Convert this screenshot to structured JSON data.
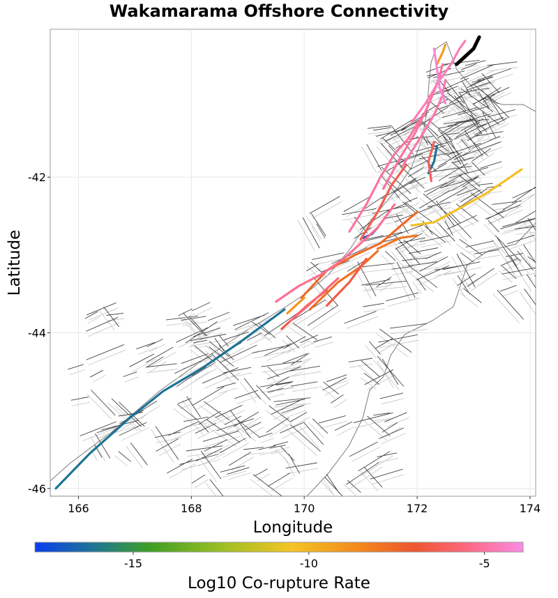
{
  "map": {
    "title": "Wakamarama Offshore Connectivity",
    "xlabel": "Longitude",
    "ylabel": "Latitude",
    "xlim": [
      165.5,
      174.1
    ],
    "ylim": [
      -46.1,
      -40.1
    ],
    "x_ticks": [
      {
        "value": 166,
        "label": "166"
      },
      {
        "value": 168,
        "label": "168"
      },
      {
        "value": 170,
        "label": "170"
      },
      {
        "value": 172,
        "label": "172"
      },
      {
        "value": 174,
        "label": "174"
      }
    ],
    "y_ticks": [
      {
        "value": -42,
        "label": "-42"
      },
      {
        "value": -44,
        "label": "-44"
      },
      {
        "value": -46,
        "label": "-46"
      }
    ],
    "grid": true,
    "source_fault_color": "#000000",
    "background_fault_color": "#444444",
    "coastline_color": "#666666"
  },
  "colorbar": {
    "title": "Log10 Co-rupture Rate",
    "range": [
      -17.8,
      -3.9
    ],
    "ticks": [
      {
        "value": -15,
        "label": "-15"
      },
      {
        "value": -10,
        "label": "-10"
      },
      {
        "value": -5,
        "label": "-5"
      }
    ],
    "stops": [
      {
        "value": -17.8,
        "color": "#0a3cf0"
      },
      {
        "value": -16.0,
        "color": "#1f7a8c"
      },
      {
        "value": -14.5,
        "color": "#3f9f22"
      },
      {
        "value": -12.5,
        "color": "#9cbf24"
      },
      {
        "value": -10.5,
        "color": "#f5c424"
      },
      {
        "value": -8.5,
        "color": "#f3861c"
      },
      {
        "value": -7.0,
        "color": "#ee5530"
      },
      {
        "value": -5.5,
        "color": "#fd6880"
      },
      {
        "value": -3.9,
        "color": "#fb8be6"
      }
    ]
  },
  "source_fault": {
    "path": [
      [
        172.7,
        -40.55
      ],
      [
        172.85,
        -40.45
      ],
      [
        173.0,
        -40.35
      ],
      [
        173.1,
        -40.2
      ]
    ]
  },
  "colored_faults": [
    {
      "rate": -16.2,
      "path": [
        [
          165.6,
          -46.0
        ],
        [
          166.2,
          -45.55
        ],
        [
          166.9,
          -45.1
        ],
        [
          167.5,
          -44.75
        ],
        [
          168.2,
          -44.45
        ],
        [
          168.9,
          -44.1
        ],
        [
          169.65,
          -43.7
        ]
      ]
    },
    {
      "rate": -16.2,
      "path": [
        [
          172.35,
          -41.6
        ],
        [
          172.3,
          -41.8
        ],
        [
          172.2,
          -41.95
        ]
      ]
    },
    {
      "rate": -17.0,
      "path": [
        [
          171.05,
          -42.78
        ],
        [
          171.2,
          -42.73
        ],
        [
          171.3,
          -42.65
        ]
      ]
    },
    {
      "rate": -10.3,
      "path": [
        [
          171.9,
          -42.62
        ],
        [
          172.3,
          -42.58
        ],
        [
          172.7,
          -42.42
        ],
        [
          173.2,
          -42.22
        ],
        [
          173.55,
          -42.05
        ],
        [
          173.85,
          -41.9
        ]
      ]
    },
    {
      "rate": -9.0,
      "path": [
        [
          169.7,
          -43.75
        ],
        [
          170.0,
          -43.55
        ]
      ]
    },
    {
      "rate": -9.2,
      "path": [
        [
          172.35,
          -40.55
        ],
        [
          172.45,
          -40.4
        ],
        [
          172.5,
          -40.3
        ]
      ]
    },
    {
      "rate": -7.6,
      "path": [
        [
          169.95,
          -43.55
        ],
        [
          170.4,
          -43.2
        ],
        [
          170.9,
          -43.0
        ],
        [
          171.35,
          -42.85
        ],
        [
          171.75,
          -42.6
        ],
        [
          172.0,
          -42.45
        ]
      ]
    },
    {
      "rate": -7.8,
      "path": [
        [
          170.1,
          -43.7
        ],
        [
          170.6,
          -43.35
        ],
        [
          171.0,
          -43.15
        ],
        [
          171.3,
          -42.95
        ]
      ]
    },
    {
      "rate": -8.0,
      "path": [
        [
          171.3,
          -42.92
        ],
        [
          171.7,
          -42.78
        ],
        [
          172.0,
          -42.75
        ]
      ]
    },
    {
      "rate": -6.6,
      "path": [
        [
          169.6,
          -43.95
        ],
        [
          170.05,
          -43.65
        ],
        [
          170.4,
          -43.45
        ]
      ]
    },
    {
      "rate": -6.6,
      "path": [
        [
          170.4,
          -43.65
        ],
        [
          170.8,
          -43.35
        ],
        [
          171.1,
          -43.05
        ]
      ]
    },
    {
      "rate": -6.4,
      "path": [
        [
          171.0,
          -42.8
        ],
        [
          171.3,
          -42.45
        ],
        [
          171.55,
          -42.1
        ],
        [
          171.8,
          -41.85
        ]
      ]
    },
    {
      "rate": -6.2,
      "path": [
        [
          172.25,
          -42.05
        ],
        [
          172.2,
          -41.8
        ],
        [
          172.3,
          -41.55
        ]
      ]
    },
    {
      "rate": -5.6,
      "path": [
        [
          169.75,
          -43.85
        ],
        [
          170.15,
          -43.6
        ],
        [
          170.6,
          -43.3
        ]
      ]
    },
    {
      "rate": -5.2,
      "path": [
        [
          169.5,
          -43.6
        ],
        [
          169.9,
          -43.4
        ],
        [
          170.3,
          -43.25
        ],
        [
          170.7,
          -43.05
        ],
        [
          171.0,
          -42.85
        ],
        [
          171.3,
          -42.65
        ],
        [
          171.6,
          -42.35
        ]
      ]
    },
    {
      "rate": -5.0,
      "path": [
        [
          170.8,
          -42.7
        ],
        [
          171.1,
          -42.35
        ],
        [
          171.35,
          -42.0
        ],
        [
          171.6,
          -41.7
        ],
        [
          171.85,
          -41.5
        ],
        [
          172.1,
          -41.2
        ]
      ]
    },
    {
      "rate": -5.0,
      "path": [
        [
          171.4,
          -42.15
        ],
        [
          171.7,
          -41.75
        ],
        [
          171.95,
          -41.45
        ],
        [
          172.15,
          -41.15
        ],
        [
          172.3,
          -40.9
        ],
        [
          172.4,
          -40.7
        ],
        [
          172.45,
          -40.55
        ]
      ]
    },
    {
      "rate": -4.8,
      "path": [
        [
          171.75,
          -41.85
        ],
        [
          172.05,
          -41.5
        ],
        [
          172.3,
          -41.2
        ],
        [
          172.45,
          -40.95
        ],
        [
          172.5,
          -40.75
        ]
      ]
    },
    {
      "rate": -4.6,
      "path": [
        [
          171.9,
          -41.3
        ],
        [
          172.15,
          -41.05
        ],
        [
          172.4,
          -40.75
        ],
        [
          172.6,
          -40.55
        ],
        [
          172.75,
          -40.35
        ],
        [
          172.85,
          -40.25
        ]
      ]
    },
    {
      "rate": -4.2,
      "path": [
        [
          172.3,
          -40.35
        ],
        [
          172.35,
          -40.6
        ],
        [
          172.4,
          -40.85
        ],
        [
          172.5,
          -41.05
        ]
      ]
    }
  ]
}
